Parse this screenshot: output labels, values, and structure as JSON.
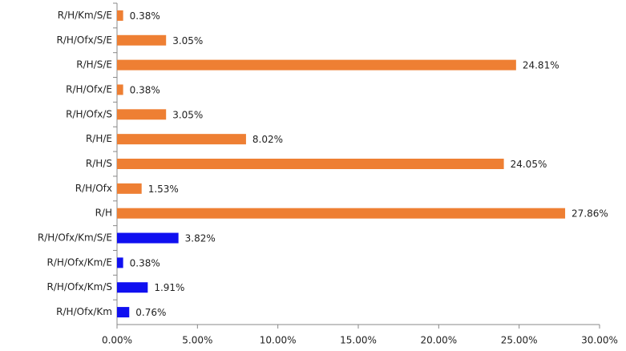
{
  "chart_data": {
    "type": "hbar",
    "categories": [
      "R/H/Km/S/E",
      "R/H/Ofx/S/E",
      "R/H/S/E",
      "R/H/Ofx/E",
      "R/H/Ofx/S",
      "R/H/E",
      "R/H/S",
      "R/H/Ofx",
      "R/H",
      "R/H/Ofx/Km/S/E",
      "R/H/Ofx/Km/E",
      "R/H/Ofx/Km/S",
      "R/H/Ofx/Km"
    ],
    "values": [
      0.38,
      3.05,
      24.81,
      0.38,
      3.05,
      8.02,
      24.05,
      1.53,
      27.86,
      3.82,
      0.38,
      1.91,
      0.76
    ],
    "value_labels": [
      "0.38%",
      "3.05%",
      "24.81%",
      "0.38%",
      "3.05%",
      "8.02%",
      "24.05%",
      "1.53%",
      "27.86%",
      "3.82%",
      "0.38%",
      "1.91%",
      "0.76%"
    ],
    "colors": [
      "#ee7f33",
      "#ee7f33",
      "#ee7f33",
      "#ee7f33",
      "#ee7f33",
      "#ee7f33",
      "#ee7f33",
      "#ee7f33",
      "#ee7f33",
      "#1010f0",
      "#1010f0",
      "#1010f0",
      "#1010f0"
    ],
    "xlim": [
      0,
      30
    ],
    "xticks": [
      {
        "value": 0,
        "label": "0.00%"
      },
      {
        "value": 5,
        "label": "5.00%"
      },
      {
        "value": 10,
        "label": "10.00%"
      },
      {
        "value": 15,
        "label": "15.00%"
      },
      {
        "value": 20,
        "label": "20.00%"
      },
      {
        "value": 25,
        "label": "25.00%"
      },
      {
        "value": 30,
        "label": "30.00%"
      }
    ]
  }
}
